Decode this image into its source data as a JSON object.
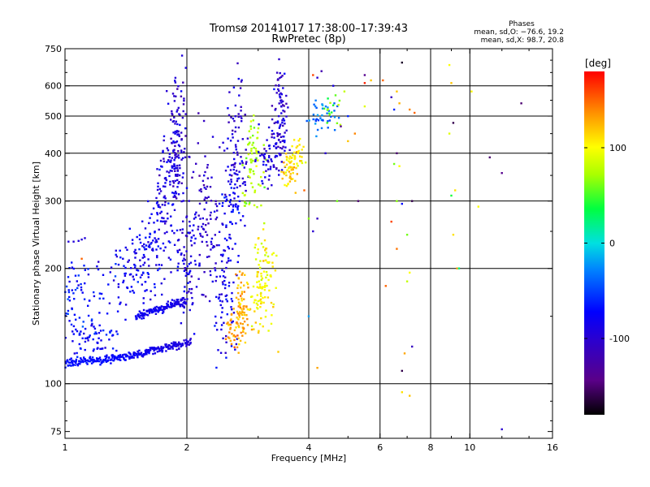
{
  "chart_data": {
    "type": "scatter",
    "title": "Tromsø 20141017 17:38:00–17:39:43",
    "subtitle": "RwPretec (8p)",
    "xlabel": "Frequency [MHz]",
    "ylabel": "Stationary phase Virtual Height [km]",
    "x_scale": "log",
    "y_scale": "log",
    "xlim": [
      1,
      16
    ],
    "ylim": [
      72,
      750
    ],
    "x_ticks": [
      1,
      2,
      4,
      6,
      8,
      10,
      16
    ],
    "y_ticks": [
      75,
      100,
      200,
      300,
      400,
      500,
      600,
      750
    ],
    "x_gridlines": [
      2,
      4,
      6,
      8,
      10
    ],
    "y_gridlines": [
      100,
      200,
      300,
      400,
      500,
      600
    ],
    "grid": true,
    "phases": {
      "title": "Phases",
      "line_o": "mean, sd,O: −76.6, 19.2",
      "line_x": "mean, sd,X:  98.7, 20.8"
    },
    "colorbar": {
      "label": "[deg]",
      "range": [
        -180,
        180
      ],
      "ticks": [
        100,
        0,
        -100
      ],
      "colormap": "rainbow (black → purple → blue → cyan → green → yellow → orange → red)"
    },
    "series": [
      {
        "segments": [
          {
            "x0": 1.0,
            "x1": 1.45,
            "y0": 113,
            "y1": 118,
            "c0": -68,
            "c1": -75
          },
          {
            "x0": 1.45,
            "x1": 2.05,
            "y0": 118,
            "y1": 129,
            "c0": -78,
            "c1": -95
          },
          {
            "x0": 1.5,
            "x1": 2.0,
            "y0": 150,
            "y1": 165,
            "c0": -80,
            "c1": -90
          }
        ],
        "clusters": [
          {
            "x": 1.05,
            "y": 160,
            "sx": 0.06,
            "sy": 0.14,
            "n": 80,
            "c": -65
          },
          {
            "x": 1.18,
            "y": 132,
            "sx": 0.08,
            "sy": 0.06,
            "n": 55,
            "c": -72
          },
          {
            "x": 1.35,
            "y": 185,
            "sx": 0.06,
            "sy": 0.12,
            "n": 50,
            "c": -78
          },
          {
            "x": 1.55,
            "y": 215,
            "sx": 0.06,
            "sy": 0.14,
            "n": 70,
            "c": -80
          },
          {
            "x": 1.72,
            "y": 260,
            "sx": 0.05,
            "sy": 0.16,
            "n": 75,
            "c": -84
          },
          {
            "x": 1.85,
            "y": 350,
            "sx": 0.04,
            "sy": 0.14,
            "n": 110,
            "c": -95
          },
          {
            "x": 1.9,
            "y": 480,
            "sx": 0.025,
            "sy": 0.16,
            "n": 70,
            "c": -98
          },
          {
            "x": 2.0,
            "y": 215,
            "sx": 0.03,
            "sy": 0.2,
            "n": 80,
            "c": -90
          },
          {
            "x": 2.25,
            "y": 270,
            "sx": 0.04,
            "sy": 0.28,
            "n": 90,
            "c": -100
          },
          {
            "x": 2.5,
            "y": 190,
            "sx": 0.035,
            "sy": 0.22,
            "n": 90,
            "c": -85
          },
          {
            "x": 2.6,
            "y": 310,
            "sx": 0.035,
            "sy": 0.1,
            "n": 55,
            "c": -80
          },
          {
            "x": 2.65,
            "y": 440,
            "sx": 0.035,
            "sy": 0.2,
            "n": 70,
            "c": -100
          },
          {
            "x": 2.65,
            "y": 140,
            "sx": 0.04,
            "sy": 0.06,
            "n": 55,
            "c": 130
          },
          {
            "x": 2.75,
            "y": 165,
            "sx": 0.025,
            "sy": 0.1,
            "n": 55,
            "c": 125
          },
          {
            "x": 2.9,
            "y": 380,
            "sx": 0.03,
            "sy": 0.15,
            "n": 70,
            "c": 75
          },
          {
            "x": 3.1,
            "y": 185,
            "sx": 0.035,
            "sy": 0.14,
            "n": 110,
            "c": 100
          },
          {
            "x": 3.2,
            "y": 390,
            "sx": 0.04,
            "sy": 0.08,
            "n": 60,
            "c": -95
          },
          {
            "x": 3.4,
            "y": 500,
            "sx": 0.02,
            "sy": 0.16,
            "n": 90,
            "c": -100
          },
          {
            "x": 3.6,
            "y": 370,
            "sx": 0.025,
            "sy": 0.06,
            "n": 50,
            "c": 115
          },
          {
            "x": 3.75,
            "y": 395,
            "sx": 0.02,
            "sy": 0.05,
            "n": 30,
            "c": 105
          },
          {
            "x": 4.3,
            "y": 500,
            "sx": 0.04,
            "sy": 0.06,
            "n": 40,
            "c": -30
          },
          {
            "x": 4.6,
            "y": 520,
            "sx": 0.02,
            "sy": 0.05,
            "n": 15,
            "c": 55
          }
        ],
        "points": [
          [
            1.02,
            235,
            -95
          ],
          [
            1.05,
            235,
            -95
          ],
          [
            1.08,
            236,
            -95
          ],
          [
            1.1,
            238,
            -95
          ],
          [
            1.12,
            240,
            -95
          ],
          [
            1.1,
            212,
            150
          ],
          [
            3.9,
            320,
            150
          ],
          [
            4.1,
            640,
            160
          ],
          [
            4.2,
            630,
            -100
          ],
          [
            4.3,
            655,
            -120
          ],
          [
            4.0,
            270,
            65
          ],
          [
            4.1,
            250,
            -100
          ],
          [
            4.2,
            270,
            -110
          ],
          [
            4.0,
            150,
            -20
          ],
          [
            4.2,
            110,
            130
          ],
          [
            4.6,
            600,
            -90
          ],
          [
            4.9,
            580,
            80
          ],
          [
            4.8,
            470,
            -140
          ],
          [
            5.0,
            500,
            -60
          ],
          [
            5.2,
            450,
            140
          ],
          [
            5.0,
            430,
            120
          ],
          [
            5.3,
            300,
            -150
          ],
          [
            5.5,
            610,
            170
          ],
          [
            5.7,
            620,
            120
          ],
          [
            5.5,
            530,
            90
          ],
          [
            6.1,
            620,
            150
          ],
          [
            6.4,
            560,
            -110
          ],
          [
            6.6,
            580,
            120
          ],
          [
            6.7,
            540,
            125
          ],
          [
            6.5,
            520,
            -60
          ],
          [
            6.6,
            400,
            -150
          ],
          [
            6.5,
            375,
            60
          ],
          [
            6.7,
            370,
            100
          ],
          [
            6.6,
            300,
            65
          ],
          [
            6.4,
            265,
            160
          ],
          [
            6.6,
            225,
            145
          ],
          [
            6.8,
            690,
            -170
          ],
          [
            6.8,
            295,
            -70
          ],
          [
            6.9,
            120,
            130
          ],
          [
            6.8,
            108,
            -160
          ],
          [
            6.8,
            95,
            110
          ],
          [
            7.0,
            245,
            60
          ],
          [
            7.1,
            195,
            100
          ],
          [
            7.0,
            185,
            80
          ],
          [
            7.2,
            125,
            -110
          ],
          [
            7.1,
            93,
            120
          ],
          [
            7.1,
            520,
            140
          ],
          [
            7.2,
            300,
            -160
          ],
          [
            7.3,
            510,
            150
          ],
          [
            8.9,
            680,
            100
          ],
          [
            9.0,
            610,
            120
          ],
          [
            8.9,
            450,
            90
          ],
          [
            9.1,
            480,
            -160
          ],
          [
            9.0,
            310,
            40
          ],
          [
            9.2,
            320,
            110
          ],
          [
            9.1,
            245,
            110
          ],
          [
            9.3,
            200,
            130
          ],
          [
            9.4,
            200,
            20
          ],
          [
            10.1,
            580,
            100
          ],
          [
            10.5,
            290,
            100
          ],
          [
            11.2,
            390,
            -150
          ],
          [
            12.0,
            355,
            -140
          ],
          [
            12.0,
            76,
            -100
          ],
          [
            13.4,
            540,
            -150
          ],
          [
            5.5,
            640,
            -140
          ],
          [
            4.4,
            400,
            -100
          ],
          [
            4.7,
            300,
            60
          ],
          [
            6.2,
            180,
            150
          ]
        ]
      }
    ]
  }
}
